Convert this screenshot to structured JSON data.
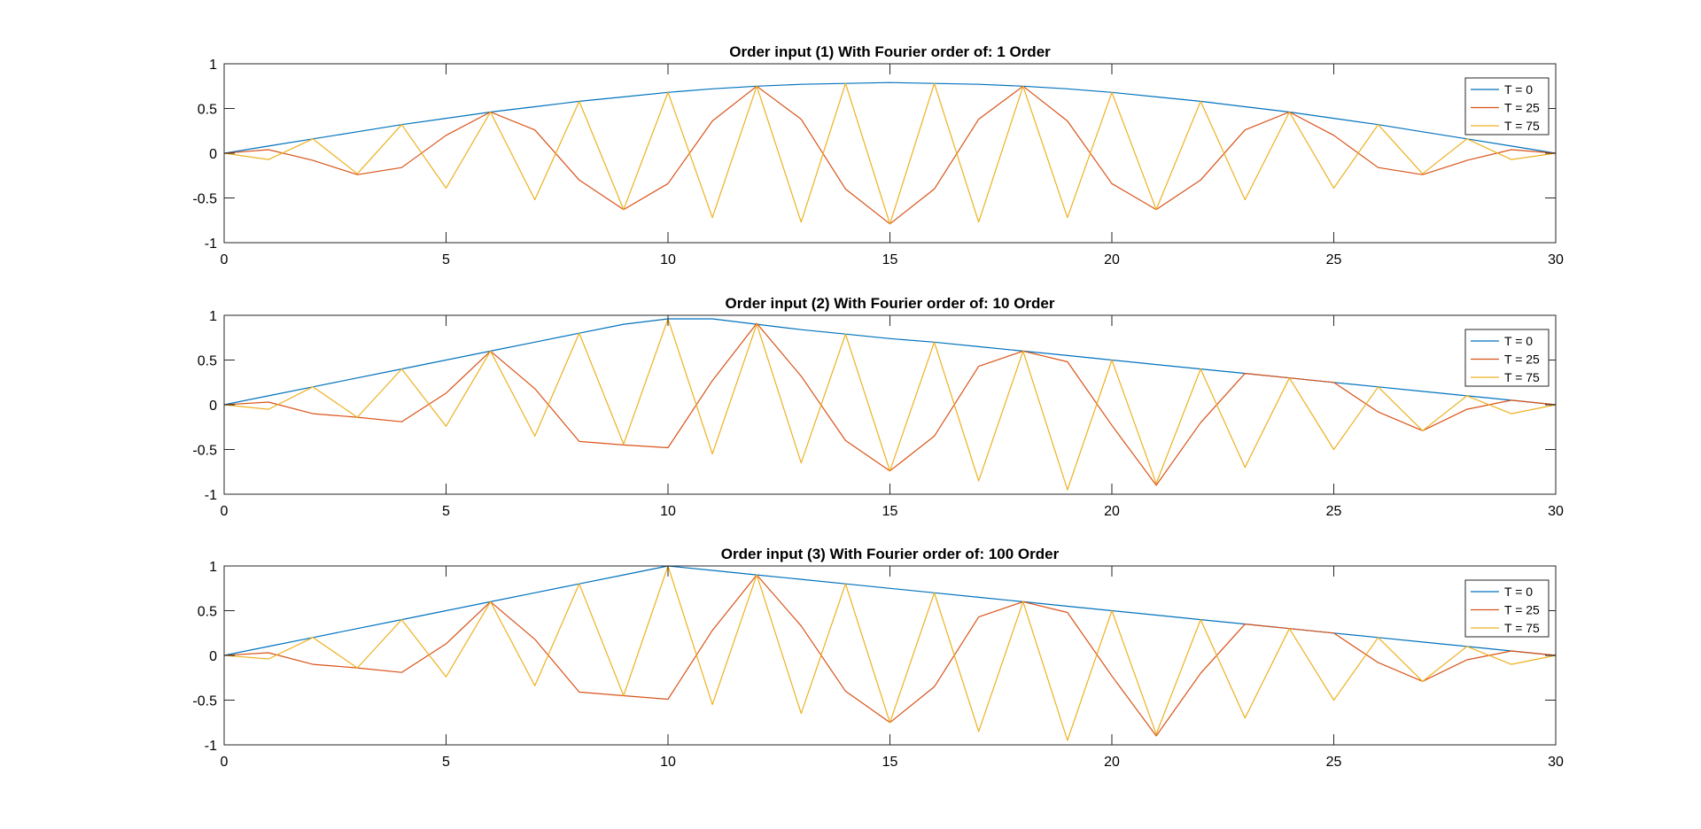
{
  "chart_data": [
    {
      "type": "line",
      "title": "Order input (1) With Fourier order of: 1 Order",
      "xlabel": "",
      "ylabel": "",
      "xlim": [
        0,
        30
      ],
      "ylim": [
        -1,
        1
      ],
      "xticks": [
        0,
        5,
        10,
        15,
        20,
        25,
        30
      ],
      "yticks": [
        1,
        0.5,
        0,
        -0.5,
        -1
      ],
      "xtick_labels": [
        "0",
        "5",
        "10",
        "15",
        "20",
        "25",
        "30"
      ],
      "ytick_labels": [
        "1",
        "0.5",
        "0",
        "-0.5",
        "-1"
      ],
      "grid": false,
      "legend_position": "top-right",
      "x": [
        0,
        1,
        2,
        3,
        4,
        5,
        6,
        7,
        8,
        9,
        10,
        11,
        12,
        13,
        14,
        15,
        16,
        17,
        18,
        19,
        20,
        21,
        22,
        23,
        24,
        25,
        26,
        27,
        28,
        29,
        30
      ],
      "series": [
        {
          "name": "T = 0",
          "color": "#0072BD",
          "values": [
            0,
            0.08,
            0.16,
            0.24,
            0.32,
            0.39,
            0.46,
            0.52,
            0.58,
            0.63,
            0.68,
            0.72,
            0.75,
            0.77,
            0.78,
            0.79,
            0.78,
            0.77,
            0.75,
            0.72,
            0.68,
            0.63,
            0.58,
            0.52,
            0.46,
            0.39,
            0.32,
            0.24,
            0.16,
            0.08,
            0
          ]
        },
        {
          "name": "T = 25",
          "color": "#D95319",
          "values": [
            0,
            0.04,
            -0.08,
            -0.24,
            -0.16,
            0.2,
            0.46,
            0.26,
            -0.3,
            -0.63,
            -0.34,
            0.36,
            0.75,
            0.38,
            -0.4,
            -0.79,
            -0.4,
            0.38,
            0.75,
            0.36,
            -0.34,
            -0.63,
            -0.3,
            0.26,
            0.46,
            0.2,
            -0.16,
            -0.24,
            -0.08,
            0.04,
            0
          ]
        },
        {
          "name": "T = 75",
          "color": "#EDB120",
          "values": [
            0,
            -0.07,
            0.16,
            -0.23,
            0.32,
            -0.39,
            0.46,
            -0.52,
            0.58,
            -0.63,
            0.68,
            -0.72,
            0.75,
            -0.77,
            0.78,
            -0.79,
            0.78,
            -0.77,
            0.75,
            -0.72,
            0.68,
            -0.63,
            0.58,
            -0.52,
            0.46,
            -0.39,
            0.32,
            -0.23,
            0.16,
            -0.07,
            0
          ]
        }
      ]
    },
    {
      "type": "line",
      "title": "Order input (2) With Fourier order of: 10 Order",
      "xlabel": "",
      "ylabel": "",
      "xlim": [
        0,
        30
      ],
      "ylim": [
        -1,
        1
      ],
      "xticks": [
        0,
        5,
        10,
        15,
        20,
        25,
        30
      ],
      "yticks": [
        1,
        0.5,
        0,
        -0.5,
        -1
      ],
      "xtick_labels": [
        "0",
        "5",
        "10",
        "15",
        "20",
        "25",
        "30"
      ],
      "ytick_labels": [
        "1",
        "0.5",
        "0",
        "-0.5",
        "-1"
      ],
      "grid": false,
      "legend_position": "top-right",
      "x": [
        0,
        1,
        2,
        3,
        4,
        5,
        6,
        7,
        8,
        9,
        10,
        11,
        12,
        13,
        14,
        15,
        16,
        17,
        18,
        19,
        20,
        21,
        22,
        23,
        24,
        25,
        26,
        27,
        28,
        29,
        30
      ],
      "series": [
        {
          "name": "T = 0",
          "color": "#0072BD",
          "values": [
            0,
            0.1,
            0.2,
            0.3,
            0.4,
            0.5,
            0.6,
            0.7,
            0.8,
            0.9,
            0.96,
            0.96,
            0.9,
            0.84,
            0.79,
            0.74,
            0.7,
            0.65,
            0.6,
            0.55,
            0.5,
            0.45,
            0.4,
            0.35,
            0.3,
            0.25,
            0.2,
            0.15,
            0.1,
            0.05,
            0
          ]
        },
        {
          "name": "T = 25",
          "color": "#D95319",
          "values": [
            0,
            0.03,
            -0.1,
            -0.14,
            -0.19,
            0.13,
            0.6,
            0.18,
            -0.41,
            -0.45,
            -0.48,
            0.27,
            0.91,
            0.32,
            -0.4,
            -0.74,
            -0.35,
            0.43,
            0.6,
            0.48,
            -0.23,
            -0.9,
            -0.2,
            0.35,
            0.3,
            0.25,
            -0.08,
            -0.29,
            -0.05,
            0.05,
            0
          ]
        },
        {
          "name": "T = 75",
          "color": "#EDB120",
          "values": [
            0,
            -0.05,
            0.2,
            -0.14,
            0.4,
            -0.24,
            0.6,
            -0.35,
            0.8,
            -0.44,
            0.96,
            -0.55,
            0.9,
            -0.65,
            0.79,
            -0.74,
            0.7,
            -0.85,
            0.6,
            -0.95,
            0.5,
            -0.88,
            0.4,
            -0.7,
            0.3,
            -0.5,
            0.2,
            -0.29,
            0.1,
            -0.1,
            0
          ]
        }
      ]
    },
    {
      "type": "line",
      "title": "Order input (3) With Fourier order of: 100 Order",
      "xlabel": "",
      "ylabel": "",
      "xlim": [
        0,
        30
      ],
      "ylim": [
        -1,
        1
      ],
      "xticks": [
        0,
        5,
        10,
        15,
        20,
        25,
        30
      ],
      "yticks": [
        1,
        0.5,
        0,
        -0.5,
        -1
      ],
      "xtick_labels": [
        "0",
        "5",
        "10",
        "15",
        "20",
        "25",
        "30"
      ],
      "ytick_labels": [
        "1",
        "0.5",
        "0",
        "-0.5",
        "-1"
      ],
      "grid": false,
      "legend_position": "top-right",
      "x": [
        0,
        1,
        2,
        3,
        4,
        5,
        6,
        7,
        8,
        9,
        10,
        11,
        12,
        13,
        14,
        15,
        16,
        17,
        18,
        19,
        20,
        21,
        22,
        23,
        24,
        25,
        26,
        27,
        28,
        29,
        30
      ],
      "series": [
        {
          "name": "T = 0",
          "color": "#0072BD",
          "values": [
            0,
            0.1,
            0.2,
            0.3,
            0.4,
            0.5,
            0.6,
            0.7,
            0.8,
            0.9,
            1.0,
            0.95,
            0.9,
            0.85,
            0.8,
            0.75,
            0.7,
            0.65,
            0.6,
            0.55,
            0.5,
            0.45,
            0.4,
            0.35,
            0.3,
            0.25,
            0.2,
            0.15,
            0.1,
            0.05,
            0
          ]
        },
        {
          "name": "T = 25",
          "color": "#D95319",
          "values": [
            0,
            0.03,
            -0.1,
            -0.14,
            -0.19,
            0.13,
            0.6,
            0.18,
            -0.41,
            -0.45,
            -0.49,
            0.28,
            0.9,
            0.33,
            -0.4,
            -0.75,
            -0.35,
            0.43,
            0.6,
            0.48,
            -0.23,
            -0.9,
            -0.2,
            0.35,
            0.3,
            0.25,
            -0.08,
            -0.29,
            -0.05,
            0.05,
            0
          ]
        },
        {
          "name": "T = 75",
          "color": "#EDB120",
          "values": [
            0,
            -0.04,
            0.2,
            -0.14,
            0.4,
            -0.24,
            0.6,
            -0.34,
            0.8,
            -0.45,
            1.0,
            -0.55,
            0.9,
            -0.65,
            0.8,
            -0.75,
            0.7,
            -0.85,
            0.6,
            -0.95,
            0.5,
            -0.88,
            0.4,
            -0.7,
            0.3,
            -0.5,
            0.2,
            -0.29,
            0.1,
            -0.1,
            0
          ]
        }
      ]
    }
  ]
}
